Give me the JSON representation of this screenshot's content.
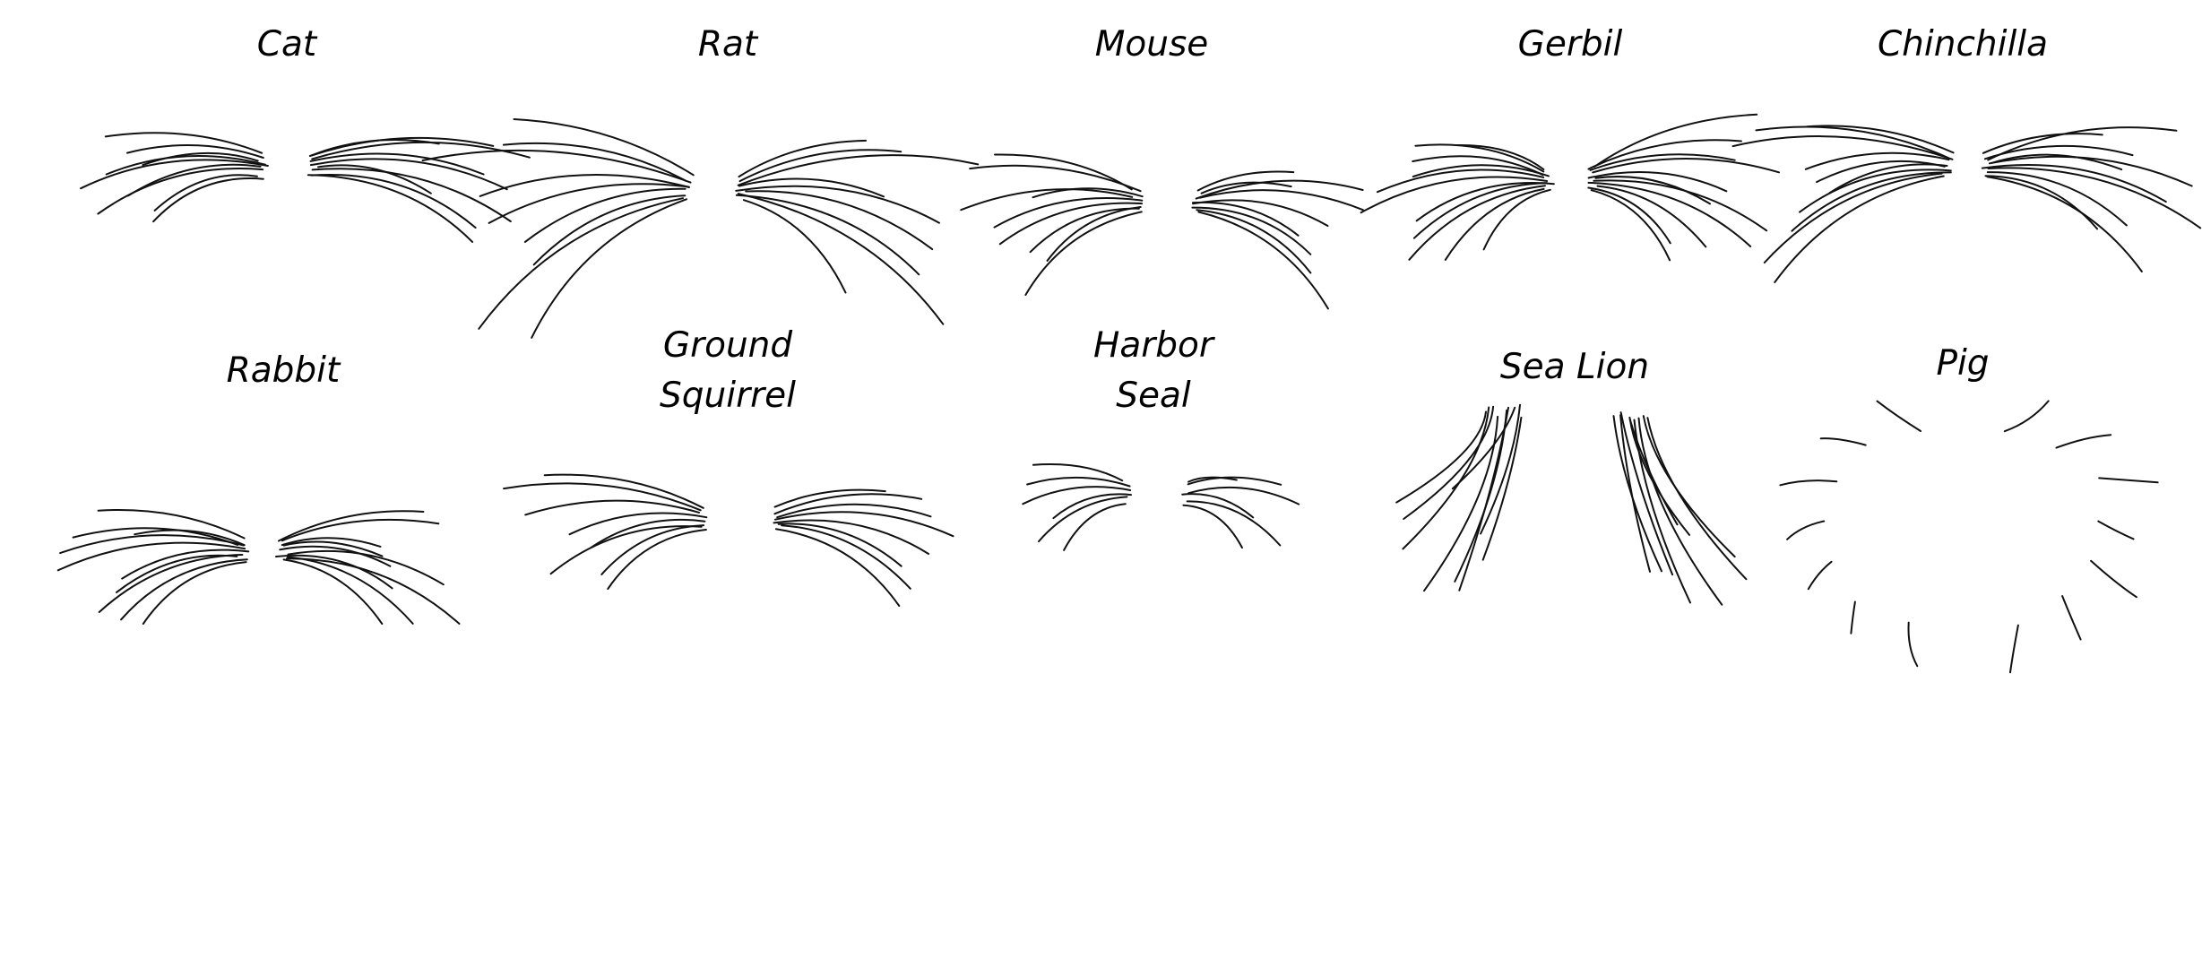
{
  "figure": {
    "ink_color": "#111111",
    "background": "#ffffff",
    "panels": [
      {
        "key": "cat",
        "label_lines": [
          "Cat"
        ],
        "whisker_count": 18,
        "shape": "fan"
      },
      {
        "key": "rat",
        "label_lines": [
          "Rat"
        ],
        "whisker_count": 18,
        "shape": "fan"
      },
      {
        "key": "mouse",
        "label_lines": [
          "Mouse"
        ],
        "whisker_count": 18,
        "shape": "fan"
      },
      {
        "key": "gerbil",
        "label_lines": [
          "Gerbil"
        ],
        "whisker_count": 22,
        "shape": "fan"
      },
      {
        "key": "chinchilla",
        "label_lines": [
          "Chinchilla"
        ],
        "whisker_count": 20,
        "shape": "fan"
      },
      {
        "key": "rabbit",
        "label_lines": [
          "Rabbit"
        ],
        "whisker_count": 20,
        "shape": "fan"
      },
      {
        "key": "ground-squirrel",
        "label_lines": [
          "Ground",
          "Squirrel"
        ],
        "whisker_count": 16,
        "shape": "fan"
      },
      {
        "key": "harbor-seal",
        "label_lines": [
          "Harbor",
          "Seal"
        ],
        "whisker_count": 12,
        "shape": "fan"
      },
      {
        "key": "sea-lion",
        "label_lines": [
          "Sea Lion"
        ],
        "whisker_count": 18,
        "shape": "droop"
      },
      {
        "key": "pig",
        "label_lines": [
          "Pig"
        ],
        "whisker_count": 14,
        "shape": "ring"
      }
    ]
  }
}
